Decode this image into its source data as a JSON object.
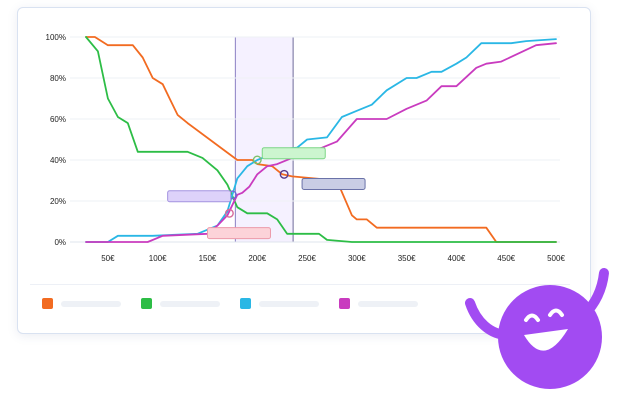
{
  "chart_data": {
    "type": "line",
    "x": [
      25,
      50,
      75,
      100,
      125,
      150,
      175,
      200,
      225,
      250,
      275,
      300,
      325,
      350,
      375,
      400,
      425,
      450,
      475,
      500
    ],
    "series": [
      {
        "color": "#f26b21",
        "points": [
          [
            28,
            100
          ],
          [
            37,
            100
          ],
          [
            50,
            96
          ],
          [
            75,
            96
          ],
          [
            85,
            90
          ],
          [
            95,
            80
          ],
          [
            105,
            77
          ],
          [
            112,
            70
          ],
          [
            120,
            62
          ],
          [
            130,
            58
          ],
          [
            180,
            40
          ],
          [
            195,
            40
          ],
          [
            200,
            38
          ],
          [
            215,
            37
          ],
          [
            225,
            33
          ],
          [
            235,
            32
          ],
          [
            280,
            30
          ],
          [
            295,
            13
          ],
          [
            300,
            11
          ],
          [
            310,
            11
          ],
          [
            320,
            7
          ],
          [
            330,
            7
          ],
          [
            340,
            7
          ],
          [
            430,
            7
          ],
          [
            440,
            0
          ],
          [
            500,
            0
          ]
        ]
      },
      {
        "color": "#2dbd46",
        "points": [
          [
            28,
            100
          ],
          [
            40,
            93
          ],
          [
            50,
            70
          ],
          [
            60,
            61
          ],
          [
            70,
            58
          ],
          [
            80,
            44
          ],
          [
            115,
            44
          ],
          [
            130,
            44
          ],
          [
            145,
            41
          ],
          [
            160,
            35
          ],
          [
            170,
            28
          ],
          [
            180,
            17
          ],
          [
            190,
            14
          ],
          [
            210,
            14
          ],
          [
            220,
            11
          ],
          [
            230,
            4
          ],
          [
            262,
            4
          ],
          [
            270,
            1
          ],
          [
            295,
            0
          ],
          [
            500,
            0
          ]
        ]
      },
      {
        "color": "#2ab7e5",
        "points": [
          [
            28,
            0
          ],
          [
            50,
            0
          ],
          [
            60,
            3
          ],
          [
            95,
            3
          ],
          [
            140,
            4
          ],
          [
            160,
            8
          ],
          [
            170,
            15
          ],
          [
            175,
            23
          ],
          [
            180,
            31
          ],
          [
            190,
            37
          ],
          [
            200,
            40
          ],
          [
            210,
            42
          ],
          [
            220,
            45
          ],
          [
            240,
            46
          ],
          [
            250,
            50
          ],
          [
            270,
            51
          ],
          [
            285,
            61
          ],
          [
            300,
            64
          ],
          [
            315,
            67
          ],
          [
            330,
            74
          ],
          [
            350,
            80
          ],
          [
            360,
            80
          ],
          [
            375,
            83
          ],
          [
            385,
            83
          ],
          [
            400,
            87
          ],
          [
            410,
            90
          ],
          [
            425,
            97
          ],
          [
            445,
            97
          ],
          [
            455,
            97
          ],
          [
            470,
            98
          ],
          [
            500,
            99
          ]
        ]
      },
      {
        "color": "#c93bbf",
        "points": [
          [
            28,
            0
          ],
          [
            60,
            0
          ],
          [
            90,
            0
          ],
          [
            105,
            3
          ],
          [
            150,
            4
          ],
          [
            160,
            8
          ],
          [
            170,
            13
          ],
          [
            180,
            23
          ],
          [
            185,
            24
          ],
          [
            192,
            27
          ],
          [
            200,
            33
          ],
          [
            210,
            37
          ],
          [
            220,
            38
          ],
          [
            235,
            41
          ],
          [
            265,
            46
          ],
          [
            280,
            49
          ],
          [
            300,
            60
          ],
          [
            315,
            60
          ],
          [
            330,
            60
          ],
          [
            350,
            65
          ],
          [
            370,
            69
          ],
          [
            385,
            76
          ],
          [
            400,
            76
          ],
          [
            420,
            85
          ],
          [
            430,
            87
          ],
          [
            445,
            88
          ],
          [
            480,
            96
          ],
          [
            500,
            97
          ]
        ]
      }
    ],
    "xlim": [
      25,
      500
    ],
    "ylim": [
      0,
      100
    ],
    "y_ticks": [
      0,
      20,
      40,
      60,
      80,
      100
    ],
    "y_tick_labels": [
      "0%",
      "20%",
      "40%",
      "60%",
      "80%",
      "100%"
    ],
    "x_ticks": [
      50,
      100,
      150,
      200,
      250,
      300,
      350,
      400,
      450,
      500
    ],
    "x_tick_labels": [
      "50€",
      "100€",
      "150€",
      "200€",
      "250€",
      "300€",
      "350€",
      "400€",
      "450€",
      "500€"
    ],
    "highlight_band": [
      178,
      236
    ],
    "intersections": [
      {
        "x": 175,
        "y": 23,
        "color": "#6b6bd6"
      },
      {
        "x": 200,
        "y": 40,
        "color": "#7bc16a"
      },
      {
        "x": 227,
        "y": 33,
        "color": "#5a3a8a"
      },
      {
        "x": 172,
        "y": 14,
        "color": "#d76a9a"
      }
    ],
    "grid": true,
    "legend_position": "bottom-left"
  },
  "callouts": [
    {
      "fill": "#ccf5cf",
      "stroke": "#7cd685",
      "anchor_x": 205,
      "anchor_y": 46
    },
    {
      "fill": "#ddd2fa",
      "stroke": "#a493e0",
      "anchor_x": 110,
      "anchor_y": 25
    },
    {
      "fill": "#c9cde5",
      "stroke": "#6a72a8",
      "anchor_x": 245,
      "anchor_y": 31
    },
    {
      "fill": "#fcd3d9",
      "stroke": "#ec9aaa",
      "anchor_x": 150,
      "anchor_y": 7
    }
  ],
  "legend": {
    "items": [
      {
        "color": "#f26b21"
      },
      {
        "color": "#2dbd46"
      },
      {
        "color": "#2ab7e5"
      },
      {
        "color": "#c93bbf"
      }
    ]
  },
  "mascot": {
    "color": "#a24bf2"
  }
}
